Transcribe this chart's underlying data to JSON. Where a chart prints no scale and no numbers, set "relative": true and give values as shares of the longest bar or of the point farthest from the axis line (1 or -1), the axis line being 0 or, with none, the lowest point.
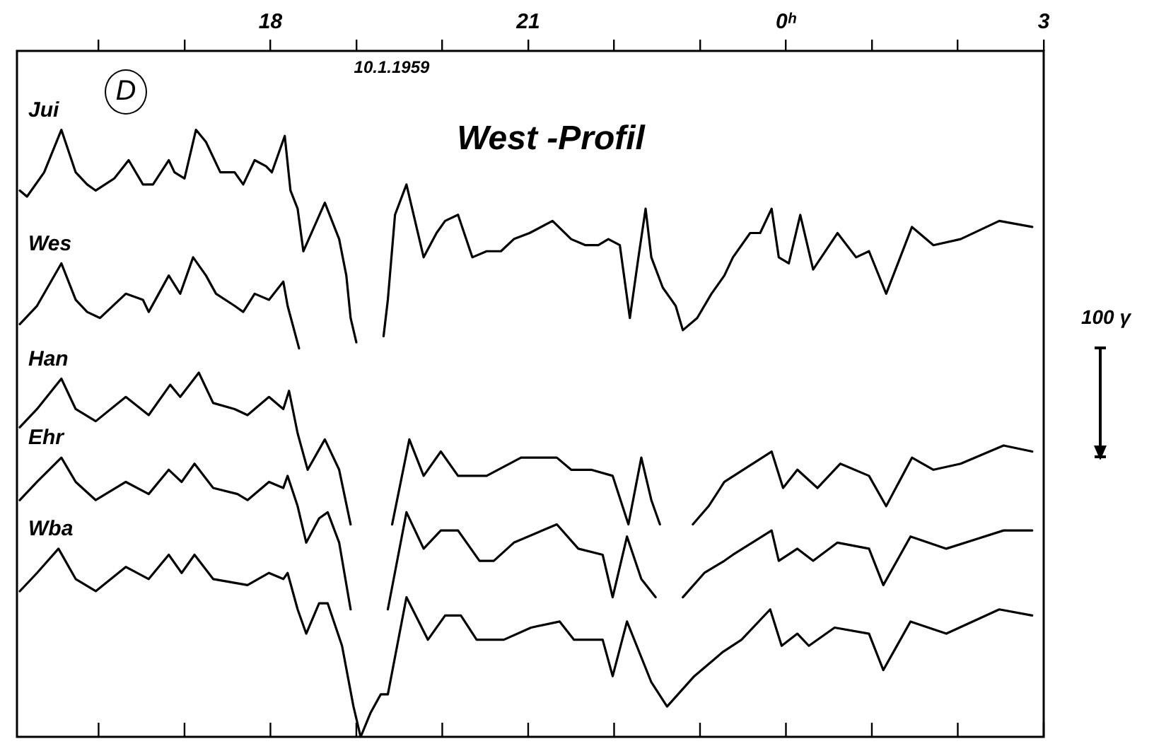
{
  "chart_data": {
    "type": "line",
    "title": "West -Profil",
    "relative": true,
    "marker": "none",
    "line_style": "solid",
    "xlim": [
      "1959-01-10T15:03",
      "1959-01-11T03:00"
    ],
    "xticks": [
      {
        "value": "1959-01-10T16:00",
        "label": null
      },
      {
        "value": "1959-01-10T17:00",
        "label": null
      },
      {
        "value": "1959-01-10T18:00",
        "label": "18"
      },
      {
        "value": "1959-01-10T19:00",
        "label": null
      },
      {
        "value": "1959-01-10T20:00",
        "label": null
      },
      {
        "value": "1959-01-10T21:00",
        "label": "21"
      },
      {
        "value": "1959-01-10T22:00",
        "label": null
      },
      {
        "value": "1959-01-10T23:00",
        "label": null
      },
      {
        "value": "1959-01-11T00:00",
        "label": "0ʰ"
      },
      {
        "value": "1959-01-11T01:00",
        "label": null
      },
      {
        "value": "1959-01-11T02:00",
        "label": null
      },
      {
        "value": "1959-01-11T03:00",
        "label": "3"
      }
    ],
    "annotations": [
      "D",
      "10.1.1959",
      "100 γ"
    ],
    "series": [
      {
        "name": "Jui",
        "color": "#000000",
        "x": [
          "1959-01-10T15:05",
          "1959-01-10T15:10",
          "1959-01-10T15:22",
          "1959-01-10T15:34",
          "1959-01-10T15:44",
          "1959-01-10T15:52",
          "1959-01-10T15:58",
          "1959-01-10T16:11",
          "1959-01-10T16:21",
          "1959-01-10T16:31",
          "1959-01-10T16:38",
          "1959-01-10T16:49",
          "1959-01-10T16:53",
          "1959-01-10T17:00",
          "1959-01-10T17:08",
          "1959-01-10T17:15",
          "1959-01-10T17:25",
          "1959-01-10T17:35",
          "1959-01-10T17:41",
          "1959-01-10T17:49",
          "1959-01-10T17:57",
          "1959-01-10T18:01",
          "1959-01-10T18:10",
          "1959-01-10T18:14",
          "1959-01-10T18:19",
          "1959-01-10T18:23",
          "1959-01-10T18:38",
          "1959-01-10T18:48",
          "1959-01-10T18:53",
          "1959-01-10T18:56",
          "1959-01-10T19:00",
          "1959-01-10T19:09",
          "1959-01-10T19:19",
          "1959-01-10T19:22",
          "1959-01-10T19:27",
          "1959-01-10T19:35",
          "1959-01-10T19:47",
          "1959-01-10T19:56",
          "1959-01-10T20:02",
          "1959-01-10T20:11",
          "1959-01-10T20:21",
          "1959-01-10T20:31",
          "1959-01-10T20:41",
          "1959-01-10T20:50",
          "1959-01-10T21:01",
          "1959-01-10T21:17",
          "1959-01-10T21:30",
          "1959-01-10T21:40",
          "1959-01-10T21:49",
          "1959-01-10T21:56",
          "1959-01-10T22:04",
          "1959-01-10T22:11",
          "1959-01-10T22:17",
          "1959-01-10T22:22",
          "1959-01-10T22:26",
          "1959-01-10T22:34",
          "1959-01-10T22:40",
          "1959-01-10T22:43",
          "1959-01-10T22:48",
          "1959-01-10T22:58",
          "1959-01-10T23:08",
          "1959-01-10T23:17",
          "1959-01-10T23:23",
          "1959-01-10T23:35",
          "1959-01-10T23:42",
          "1959-01-10T23:50",
          "1959-01-10T23:55",
          "1959-01-11T00:02",
          "1959-01-11T00:10",
          "1959-01-11T00:19",
          "1959-01-11T00:36",
          "1959-01-11T00:49",
          "1959-01-11T00:58",
          "1959-01-11T01:10",
          "1959-01-11T01:28",
          "1959-01-11T01:43",
          "1959-01-11T02:02",
          "1959-01-11T02:29",
          "1959-01-11T02:52"
        ],
        "values": [
          0.9,
          0.89,
          0.93,
          1.0,
          0.93,
          0.91,
          0.9,
          0.92,
          0.95,
          0.91,
          0.91,
          0.95,
          0.93,
          0.92,
          1.0,
          0.98,
          0.93,
          0.93,
          0.91,
          0.95,
          0.94,
          0.93,
          0.99,
          0.9,
          0.87,
          0.8,
          0.88,
          0.82,
          0.76,
          0.69,
          0.65,
          null,
          0.66,
          0.72,
          0.86,
          0.91,
          0.79,
          0.83,
          0.85,
          0.86,
          0.79,
          0.8,
          0.8,
          0.82,
          0.83,
          0.85,
          0.82,
          0.81,
          0.81,
          0.82,
          0.81,
          0.69,
          0.79,
          0.87,
          0.79,
          0.74,
          0.72,
          0.71,
          0.67,
          0.69,
          0.73,
          0.76,
          0.79,
          0.83,
          0.83,
          0.87,
          0.79,
          0.78,
          0.86,
          0.77,
          0.83,
          0.79,
          0.8,
          0.73,
          0.84,
          0.81,
          0.82,
          0.85,
          0.84
        ]
      },
      {
        "name": "Wes",
        "color": "#000000",
        "x": [
          "1959-01-10T15:05",
          "1959-01-10T15:17",
          "1959-01-10T15:34",
          "1959-01-10T15:44",
          "1959-01-10T15:52",
          "1959-01-10T16:01",
          "1959-01-10T16:19",
          "1959-01-10T16:31",
          "1959-01-10T16:35",
          "1959-01-10T16:49",
          "1959-01-10T16:57",
          "1959-01-10T17:06",
          "1959-01-10T17:15",
          "1959-01-10T17:22",
          "1959-01-10T17:35",
          "1959-01-10T17:41",
          "1959-01-10T17:49",
          "1959-01-10T17:59",
          "1959-01-10T18:09",
          "1959-01-10T18:12",
          "1959-01-10T18:20"
        ],
        "values": [
          0.68,
          0.71,
          0.78,
          0.72,
          0.7,
          0.69,
          0.73,
          0.72,
          0.7,
          0.76,
          0.73,
          0.79,
          0.76,
          0.73,
          0.71,
          0.7,
          0.73,
          0.72,
          0.75,
          0.71,
          0.64
        ]
      },
      {
        "name": "Han",
        "color": "#000000",
        "x": [
          "1959-01-10T15:05",
          "1959-01-10T15:17",
          "1959-01-10T15:34",
          "1959-01-10T15:44",
          "1959-01-10T15:58",
          "1959-01-10T16:19",
          "1959-01-10T16:35",
          "1959-01-10T16:50",
          "1959-01-10T16:57",
          "1959-01-10T17:10",
          "1959-01-10T17:20",
          "1959-01-10T17:35",
          "1959-01-10T17:44",
          "1959-01-10T17:59",
          "1959-01-10T18:09",
          "1959-01-10T18:13",
          "1959-01-10T18:19",
          "1959-01-10T18:26",
          "1959-01-10T18:38",
          "1959-01-10T18:48",
          "1959-01-10T18:56",
          "1959-01-10T19:12",
          "1959-01-10T19:25",
          "1959-01-10T19:37",
          "1959-01-10T19:47",
          "1959-01-10T19:59",
          "1959-01-10T20:11",
          "1959-01-10T20:31",
          "1959-01-10T20:55",
          "1959-01-10T21:20",
          "1959-01-10T21:30",
          "1959-01-10T21:44",
          "1959-01-10T21:59",
          "1959-01-10T22:10",
          "1959-01-10T22:19",
          "1959-01-10T22:26",
          "1959-01-10T22:32",
          "1959-01-10T22:42",
          "1959-01-10T22:55",
          "1959-01-10T23:06",
          "1959-01-10T23:17",
          "1959-01-10T23:50",
          "1959-01-10T23:58",
          "1959-01-11T00:08",
          "1959-01-11T00:22",
          "1959-01-11T00:38",
          "1959-01-11T00:58",
          "1959-01-11T01:10",
          "1959-01-11T01:28",
          "1959-01-11T01:43",
          "1959-01-11T02:02",
          "1959-01-11T02:32",
          "1959-01-11T02:52"
        ],
        "values": [
          0.51,
          0.54,
          0.59,
          0.54,
          0.52,
          0.56,
          0.53,
          0.58,
          0.56,
          0.6,
          0.55,
          0.54,
          0.53,
          0.56,
          0.54,
          0.57,
          0.5,
          0.44,
          0.49,
          0.44,
          0.35,
          null,
          0.35,
          0.49,
          0.43,
          0.47,
          0.43,
          0.43,
          0.46,
          0.46,
          0.44,
          0.44,
          0.43,
          0.35,
          0.46,
          0.39,
          0.35,
          null,
          0.35,
          0.38,
          0.42,
          0.47,
          0.41,
          0.44,
          0.41,
          0.45,
          0.43,
          0.38,
          0.46,
          0.44,
          0.45,
          0.48,
          0.47
        ]
      },
      {
        "name": "Ehr",
        "color": "#000000",
        "x": [
          "1959-01-10T15:05",
          "1959-01-10T15:17",
          "1959-01-10T15:34",
          "1959-01-10T15:44",
          "1959-01-10T15:58",
          "1959-01-10T16:19",
          "1959-01-10T16:35",
          "1959-01-10T16:49",
          "1959-01-10T16:58",
          "1959-01-10T17:07",
          "1959-01-10T17:20",
          "1959-01-10T17:37",
          "1959-01-10T17:44",
          "1959-01-10T17:59",
          "1959-01-10T18:09",
          "1959-01-10T18:12",
          "1959-01-10T18:19",
          "1959-01-10T18:25",
          "1959-01-10T18:34",
          "1959-01-10T18:40",
          "1959-01-10T18:48",
          "1959-01-10T18:56",
          "1959-01-10T19:09",
          "1959-01-10T19:22",
          "1959-01-10T19:35",
          "1959-01-10T19:47",
          "1959-01-10T19:59",
          "1959-01-10T20:11",
          "1959-01-10T20:26",
          "1959-01-10T20:36",
          "1959-01-10T20:50",
          "1959-01-10T21:20",
          "1959-01-10T21:35",
          "1959-01-10T21:52",
          "1959-01-10T21:59",
          "1959-01-10T22:09",
          "1959-01-10T22:19",
          "1959-01-10T22:29",
          "1959-01-10T22:39",
          "1959-01-10T22:48",
          "1959-01-10T23:03",
          "1959-01-10T23:17",
          "1959-01-10T23:23",
          "1959-01-10T23:50",
          "1959-01-10T23:55",
          "1959-01-11T00:08",
          "1959-01-11T00:19",
          "1959-01-11T00:36",
          "1959-01-11T00:58",
          "1959-01-11T01:08",
          "1959-01-11T01:27",
          "1959-01-11T01:52",
          "1959-01-11T02:32",
          "1959-01-11T02:52"
        ],
        "values": [
          0.39,
          0.42,
          0.46,
          0.42,
          0.39,
          0.42,
          0.4,
          0.44,
          0.42,
          0.45,
          0.41,
          0.4,
          0.39,
          0.42,
          0.41,
          0.43,
          0.38,
          0.32,
          0.36,
          0.37,
          0.32,
          0.21,
          null,
          0.21,
          0.37,
          0.31,
          0.34,
          0.34,
          0.29,
          0.29,
          0.32,
          0.35,
          0.31,
          0.3,
          0.23,
          0.33,
          0.26,
          0.23,
          null,
          0.23,
          0.27,
          0.29,
          0.3,
          0.34,
          0.29,
          0.31,
          0.29,
          0.32,
          0.31,
          0.25,
          0.33,
          0.31,
          0.34,
          0.34
        ]
      },
      {
        "name": "Wba",
        "color": "#000000",
        "x": [
          "1959-01-10T15:05",
          "1959-01-10T15:17",
          "1959-01-10T15:32",
          "1959-01-10T15:44",
          "1959-01-10T15:58",
          "1959-01-10T16:19",
          "1959-01-10T16:35",
          "1959-01-10T16:49",
          "1959-01-10T16:58",
          "1959-01-10T17:07",
          "1959-01-10T17:20",
          "1959-01-10T17:44",
          "1959-01-10T17:59",
          "1959-01-10T18:09",
          "1959-01-10T18:12",
          "1959-01-10T18:19",
          "1959-01-10T18:25",
          "1959-01-10T18:34",
          "1959-01-10T18:40",
          "1959-01-10T18:50",
          "1959-01-10T18:58",
          "1959-01-10T19:03",
          "1959-01-10T19:10",
          "1959-01-10T19:17",
          "1959-01-10T19:22",
          "1959-01-10T19:35",
          "1959-01-10T19:50",
          "1959-01-10T20:02",
          "1959-01-10T20:13",
          "1959-01-10T20:24",
          "1959-01-10T20:43",
          "1959-01-10T21:02",
          "1959-01-10T21:22",
          "1959-01-10T21:32",
          "1959-01-10T21:52",
          "1959-01-10T21:59",
          "1959-01-10T22:09",
          "1959-01-10T22:26",
          "1959-01-10T22:37",
          "1959-01-10T22:56",
          "1959-01-10T23:16",
          "1959-01-10T23:29",
          "1959-01-10T23:49",
          "1959-01-10T23:57",
          "1959-01-11T00:08",
          "1959-01-11T00:16",
          "1959-01-11T00:34",
          "1959-01-11T00:58",
          "1959-01-11T01:08",
          "1959-01-11T01:27",
          "1959-01-11T01:52",
          "1959-01-11T02:29",
          "1959-01-11T02:52"
        ],
        "values": [
          0.24,
          0.27,
          0.31,
          0.26,
          0.24,
          0.28,
          0.26,
          0.3,
          0.27,
          0.3,
          0.26,
          0.25,
          0.27,
          0.26,
          0.27,
          0.21,
          0.17,
          0.22,
          0.22,
          0.15,
          0.05,
          0.0,
          0.04,
          0.07,
          0.07,
          0.23,
          0.16,
          0.2,
          0.2,
          0.16,
          0.16,
          0.18,
          0.19,
          0.16,
          0.16,
          0.1,
          0.19,
          0.09,
          0.05,
          0.1,
          0.14,
          0.16,
          0.21,
          0.15,
          0.17,
          0.15,
          0.18,
          0.17,
          0.11,
          0.19,
          0.17,
          0.21,
          0.2
        ]
      }
    ]
  }
}
